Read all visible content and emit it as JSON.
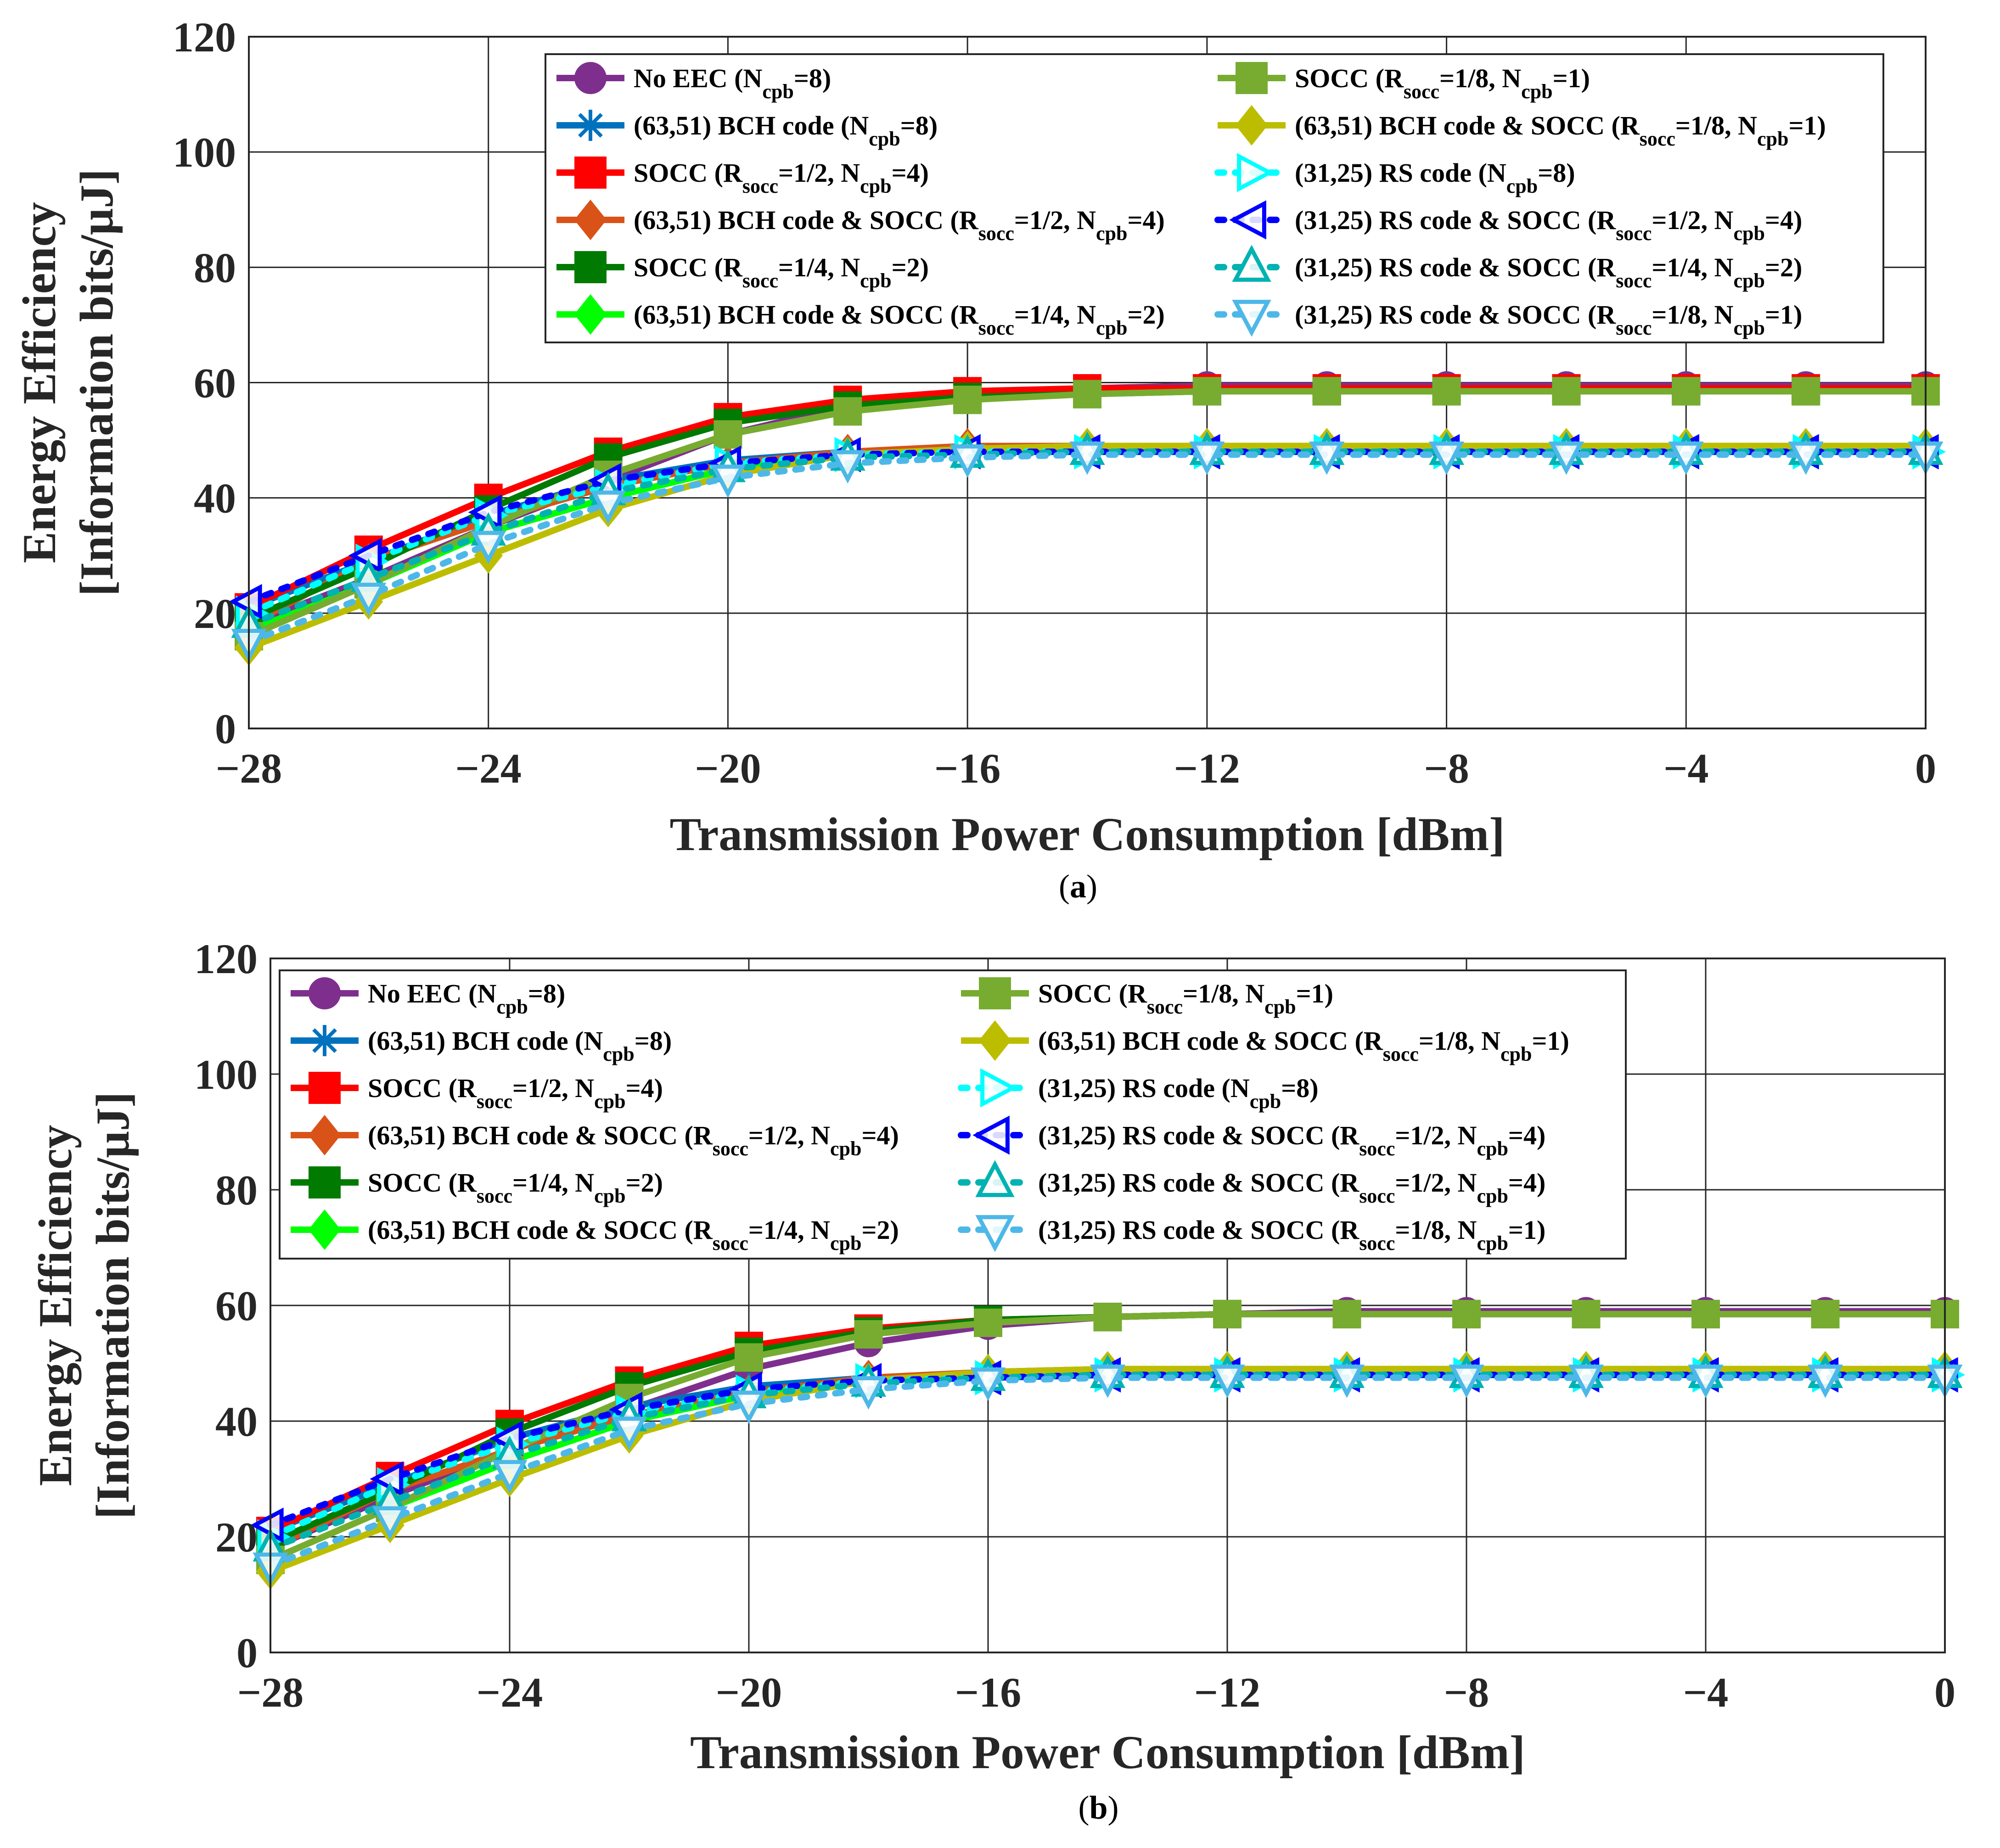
{
  "chart_data": [
    {
      "type": "line",
      "panel_label": "(a)",
      "panel_letter": "a",
      "xlabel": "Transmission Power Consumption [dBm]",
      "ylabel_line1": "Energy Efficiency",
      "ylabel_line2": "[Information bits/μJ]",
      "xlim": [
        -28,
        0
      ],
      "ylim": [
        0,
        120
      ],
      "xticks": [
        -28,
        -24,
        -20,
        -16,
        -12,
        -8,
        -4,
        0
      ],
      "yticks": [
        0,
        20,
        40,
        60,
        80,
        100,
        120
      ],
      "grid": true,
      "legend_position": "upper-right",
      "x": [
        -28,
        -26,
        -24,
        -22,
        -20,
        -18,
        -16,
        -14,
        -12,
        -10,
        -8,
        -6,
        -4,
        -2,
        0
      ],
      "series": [
        {
          "name": "No EEC",
          "params": [
            {
              "main": "N",
              "sub": "cpb",
              "rest": "=8"
            }
          ],
          "color": "#7e2f8e",
          "marker": "circle",
          "dashed": false,
          "values": [
            18,
            26,
            35,
            43,
            51,
            56,
            58,
            59,
            59.5,
            59.5,
            59.5,
            59.5,
            59.5,
            59.5,
            59.5
          ]
        },
        {
          "name": "(63,51) BCH code",
          "params": [
            {
              "main": "N",
              "sub": "cpb",
              "rest": "=8"
            }
          ],
          "color": "#0072bd",
          "marker": "asterisk",
          "dashed": false,
          "values": [
            21,
            29,
            37,
            43,
            46.5,
            48,
            48.5,
            48.5,
            48.5,
            48.5,
            48.5,
            48.5,
            48.5,
            48.5,
            48.5
          ]
        },
        {
          "name": "SOCC",
          "params": [
            {
              "main": "R",
              "sub": "socc",
              "rest": "=1/2, "
            },
            {
              "main": "N",
              "sub": "cpb",
              "rest": "=4"
            }
          ],
          "color": "#ff0000",
          "marker": "square",
          "dashed": false,
          "values": [
            21,
            31,
            40,
            48,
            54,
            57,
            58.5,
            59,
            59,
            59,
            59,
            59,
            59,
            59,
            59
          ]
        },
        {
          "name": "(63,51) BCH code & SOCC",
          "params": [
            {
              "main": "R",
              "sub": "socc",
              "rest": "=1/2, "
            },
            {
              "main": "N",
              "sub": "cpb",
              "rest": "=4"
            }
          ],
          "color": "#d95319",
          "marker": "diamond",
          "dashed": false,
          "values": [
            18,
            29,
            36,
            42,
            46,
            48,
            49,
            49,
            49,
            49,
            49,
            49,
            49,
            49,
            49
          ]
        },
        {
          "name": "SOCC",
          "params": [
            {
              "main": "R",
              "sub": "socc",
              "rest": "=1/4, "
            },
            {
              "main": "N",
              "sub": "cpb",
              "rest": "=2"
            }
          ],
          "color": "#007a00",
          "marker": "square",
          "dashed": false,
          "values": [
            19,
            28,
            38,
            47,
            53,
            56,
            57.5,
            58,
            58.5,
            58.5,
            58.5,
            58.5,
            58.5,
            58.5,
            58.5
          ]
        },
        {
          "name": "(63,51) BCH code & SOCC",
          "params": [
            {
              "main": "R",
              "sub": "socc",
              "rest": "=1/4, "
            },
            {
              "main": "N",
              "sub": "cpb",
              "rest": "=2"
            }
          ],
          "color": "#00ff00",
          "marker": "diamond",
          "dashed": false,
          "values": [
            17,
            25,
            34,
            40,
            45,
            47.5,
            48.5,
            49,
            49,
            49,
            49,
            49,
            49,
            49,
            49
          ]
        },
        {
          "name": "SOCC",
          "params": [
            {
              "main": "R",
              "sub": "socc",
              "rest": "=1/8, "
            },
            {
              "main": "N",
              "sub": "cpb",
              "rest": "=1"
            }
          ],
          "color": "#77ac30",
          "marker": "square",
          "dashed": false,
          "values": [
            16,
            25,
            35,
            44,
            51,
            55,
            57,
            58,
            58.5,
            58.5,
            58.5,
            58.5,
            58.5,
            58.5,
            58.5
          ]
        },
        {
          "name": "(63,51) BCH code & SOCC",
          "params": [
            {
              "main": "R",
              "sub": "socc",
              "rest": "=1/8, "
            },
            {
              "main": "N",
              "sub": "cpb",
              "rest": "=1"
            }
          ],
          "color": "#bdbd00",
          "marker": "diamond",
          "dashed": false,
          "values": [
            14,
            22,
            30,
            38,
            44,
            47.5,
            48.5,
            49,
            49,
            49,
            49,
            49,
            49,
            49,
            49
          ]
        },
        {
          "name": "(31,25) RS code",
          "params": [
            {
              "main": "N",
              "sub": "cpb",
              "rest": "=8"
            }
          ],
          "color": "#00ffff",
          "marker": "triangle-right",
          "dashed": true,
          "values": [
            20,
            29,
            37,
            42,
            46,
            47.5,
            48,
            48,
            48,
            48,
            48,
            48,
            48,
            48,
            48
          ]
        },
        {
          "name": "(31,25) RS code & SOCC",
          "params": [
            {
              "main": "R",
              "sub": "socc",
              "rest": "=1/2, "
            },
            {
              "main": "N",
              "sub": "cpb",
              "rest": "=4"
            }
          ],
          "color": "#0000ff",
          "marker": "triangle-left",
          "dashed": true,
          "values": [
            22,
            30,
            37.5,
            43,
            46,
            47.5,
            48,
            48,
            48,
            48,
            48,
            48,
            48,
            48,
            48
          ]
        },
        {
          "name": "(31,25) RS code & SOCC",
          "params": [
            {
              "main": "R",
              "sub": "socc",
              "rest": "=1/4, "
            },
            {
              "main": "N",
              "sub": "cpb",
              "rest": "=2"
            }
          ],
          "color": "#00b2b2",
          "marker": "triangle-up",
          "dashed": true,
          "values": [
            18,
            26,
            34,
            41,
            45,
            47,
            47.5,
            48,
            48,
            48,
            48,
            48,
            48,
            48,
            48
          ]
        },
        {
          "name": "(31,25) RS code & SOCC",
          "params": [
            {
              "main": "R",
              "sub": "socc",
              "rest": "=1/8, "
            },
            {
              "main": "N",
              "sub": "cpb",
              "rest": "=1"
            }
          ],
          "color": "#4db8e8",
          "marker": "triangle-down",
          "dashed": true,
          "values": [
            15,
            23,
            32,
            39,
            43.5,
            46,
            47,
            47.5,
            47.5,
            47.5,
            47.5,
            47.5,
            47.5,
            47.5,
            47.5
          ]
        }
      ]
    },
    {
      "type": "line",
      "panel_label": "(b)",
      "panel_letter": "b",
      "xlabel": "Transmission Power Consumption [dBm]",
      "ylabel_line1": "Energy Efficiency",
      "ylabel_line2": "[Information bits/μJ]",
      "xlim": [
        -28,
        0
      ],
      "ylim": [
        0,
        120
      ],
      "xticks": [
        -28,
        -24,
        -20,
        -16,
        -12,
        -8,
        -4,
        0
      ],
      "yticks": [
        0,
        20,
        40,
        60,
        80,
        100,
        120
      ],
      "grid": true,
      "legend_position": "upper-left",
      "x": [
        -28,
        -26,
        -24,
        -22,
        -20,
        -18,
        -16,
        -14,
        -12,
        -10,
        -8,
        -6,
        -4,
        -2,
        0
      ],
      "series": [
        {
          "name": "No EEC",
          "params": [
            {
              "main": "N",
              "sub": "cpb",
              "rest": "=8"
            }
          ],
          "color": "#7e2f8e",
          "marker": "circle",
          "dashed": false,
          "values": [
            18,
            27,
            35,
            42,
            49,
            53.5,
            56.5,
            58,
            58.5,
            59,
            59,
            59,
            59,
            59,
            59
          ]
        },
        {
          "name": "(63,51) BCH code",
          "params": [
            {
              "main": "N",
              "sub": "cpb",
              "rest": "=8"
            }
          ],
          "color": "#0072bd",
          "marker": "asterisk",
          "dashed": false,
          "values": [
            21,
            29,
            37,
            42.5,
            46,
            47.5,
            48,
            48.5,
            48.5,
            48.5,
            48.5,
            48.5,
            48.5,
            48.5,
            48.5
          ]
        },
        {
          "name": "SOCC",
          "params": [
            {
              "main": "R",
              "sub": "socc",
              "rest": "=1/2, "
            },
            {
              "main": "N",
              "sub": "cpb",
              "rest": "=4"
            }
          ],
          "color": "#ff0000",
          "marker": "square",
          "dashed": false,
          "values": [
            21,
            30.5,
            39.5,
            47,
            53,
            56,
            57.5,
            58,
            58.5,
            58.5,
            58.5,
            58.5,
            58.5,
            58.5,
            58.5
          ]
        },
        {
          "name": "(63,51) BCH code & SOCC",
          "params": [
            {
              "main": "R",
              "sub": "socc",
              "rest": "=1/2, "
            },
            {
              "main": "N",
              "sub": "cpb",
              "rest": "=4"
            }
          ],
          "color": "#d95319",
          "marker": "diamond",
          "dashed": false,
          "values": [
            18,
            28,
            35,
            41,
            45,
            47.5,
            48.5,
            49,
            49,
            49,
            49,
            49,
            49,
            49,
            49
          ]
        },
        {
          "name": "SOCC",
          "params": [
            {
              "main": "R",
              "sub": "socc",
              "rest": "=1/4, "
            },
            {
              "main": "N",
              "sub": "cpb",
              "rest": "=2"
            }
          ],
          "color": "#007a00",
          "marker": "square",
          "dashed": false,
          "values": [
            19,
            28,
            38,
            46,
            52,
            55.5,
            57.5,
            58,
            58.5,
            58.5,
            58.5,
            58.5,
            58.5,
            58.5,
            58.5
          ]
        },
        {
          "name": "(63,51) BCH code & SOCC",
          "params": [
            {
              "main": "R",
              "sub": "socc",
              "rest": "=1/4, "
            },
            {
              "main": "N",
              "sub": "cpb",
              "rest": "=2"
            }
          ],
          "color": "#00ff00",
          "marker": "diamond",
          "dashed": false,
          "values": [
            16,
            25,
            33,
            40,
            44.5,
            47,
            48.5,
            49,
            49,
            49,
            49,
            49,
            49,
            49,
            49
          ]
        },
        {
          "name": "SOCC",
          "params": [
            {
              "main": "R",
              "sub": "socc",
              "rest": "=1/8, "
            },
            {
              "main": "N",
              "sub": "cpb",
              "rest": "=1"
            }
          ],
          "color": "#77ac30",
          "marker": "square",
          "dashed": false,
          "values": [
            16,
            25,
            35,
            44,
            51,
            55,
            57,
            58,
            58.5,
            58.5,
            58.5,
            58.5,
            58.5,
            58.5,
            58.5
          ]
        },
        {
          "name": "(63,51) BCH code & SOCC",
          "params": [
            {
              "main": "R",
              "sub": "socc",
              "rest": "=1/8, "
            },
            {
              "main": "N",
              "sub": "cpb",
              "rest": "=1"
            }
          ],
          "color": "#bdbd00",
          "marker": "diamond",
          "dashed": false,
          "values": [
            14,
            22,
            30,
            37.5,
            43.5,
            47,
            48.5,
            49,
            49,
            49,
            49,
            49,
            49,
            49,
            49
          ]
        },
        {
          "name": "(31,25) RS code",
          "params": [
            {
              "main": "N",
              "sub": "cpb",
              "rest": "=8"
            }
          ],
          "color": "#00ffff",
          "marker": "triangle-right",
          "dashed": true,
          "values": [
            20,
            29,
            36,
            41.5,
            45,
            47,
            47.5,
            48,
            48,
            48,
            48,
            48,
            48,
            48,
            48
          ]
        },
        {
          "name": "(31,25) RS code & SOCC",
          "params": [
            {
              "main": "R",
              "sub": "socc",
              "rest": "=1/2, "
            },
            {
              "main": "N",
              "sub": "cpb",
              "rest": "=4"
            }
          ],
          "color": "#0000ff",
          "marker": "triangle-left",
          "dashed": true,
          "values": [
            22,
            30,
            37,
            42,
            45.5,
            47,
            47.5,
            48,
            48,
            48,
            48,
            48,
            48,
            48,
            48
          ]
        },
        {
          "name": "(31,25) RS code & SOCC",
          "params": [
            {
              "main": "R",
              "sub": "socc",
              "rest": "=1/2, "
            },
            {
              "main": "N",
              "sub": "cpb",
              "rest": "=4"
            }
          ],
          "color": "#00b2b2",
          "marker": "triangle-up",
          "dashed": true,
          "values": [
            18,
            26,
            34,
            40.5,
            44.5,
            46.5,
            47.5,
            48,
            48,
            48,
            48,
            48,
            48,
            48,
            48
          ]
        },
        {
          "name": "(31,25) RS code & SOCC",
          "params": [
            {
              "main": "R",
              "sub": "socc",
              "rest": "=1/8, "
            },
            {
              "main": "N",
              "sub": "cpb",
              "rest": "=1"
            }
          ],
          "color": "#4db8e8",
          "marker": "triangle-down",
          "dashed": true,
          "values": [
            15,
            23,
            31,
            38.5,
            43,
            45.5,
            47,
            47.5,
            47.5,
            47.5,
            47.5,
            47.5,
            47.5,
            47.5,
            47.5
          ]
        }
      ]
    }
  ]
}
